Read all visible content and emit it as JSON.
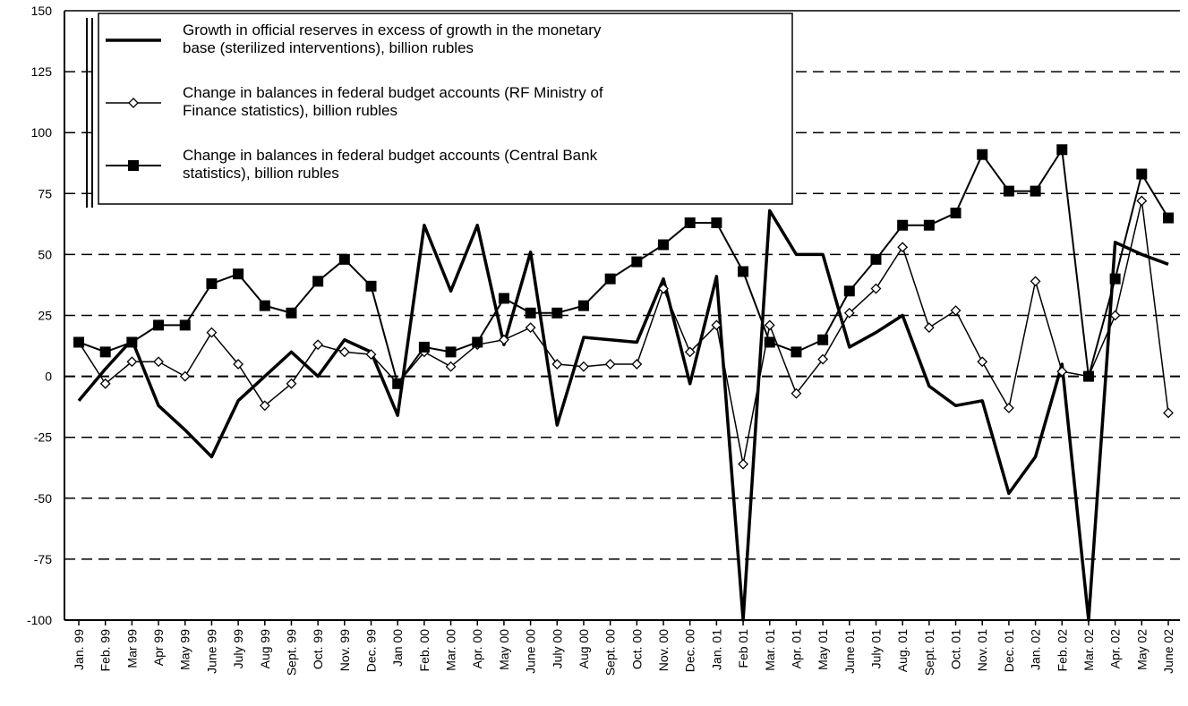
{
  "chart_data": {
    "type": "line",
    "categories": [
      "Jan. 99",
      "Feb. 99",
      "Mar 99",
      "Apr 99",
      "May 99",
      "June 99",
      "July 99",
      "Aug 99",
      "Sept. 99",
      "Oct. 99",
      "Nov. 99",
      "Dec. 99",
      "Jan 00",
      "Feb. 00",
      "Mar. 00",
      "Apr. 00",
      "May 00",
      "June 00",
      "July 00",
      "Aug 00",
      "Sept. 00",
      "Oct. 00",
      "Nov. 00",
      "Dec. 00",
      "Jan. 01",
      "Feb 01",
      "Mar. 01",
      "Apr. 01",
      "May 01",
      "June 01",
      "July 01",
      "Aug. 01",
      "Sept. 01",
      "Oct. 01",
      "Nov. 01",
      "Dec. 01",
      "Jan. 02",
      "Feb. 02",
      "Mar. 02",
      "Apr. 02",
      "May 02",
      "June 02"
    ],
    "series": [
      {
        "name": [
          "Growth in official reserves in excess of growth in the monetary",
          "base (sterilized interventions), billion rubles"
        ],
        "color": "#000000",
        "marker": "none",
        "width": 3.5,
        "values": [
          -10,
          3,
          15,
          -12,
          -22,
          -33,
          -10,
          0,
          10,
          0,
          15,
          10,
          -16,
          62,
          35,
          62,
          13,
          51,
          -20,
          16,
          15,
          14,
          40,
          -3,
          41,
          -100,
          68,
          50,
          50,
          12,
          18,
          25,
          -4,
          -12,
          -10,
          -48,
          -33,
          5,
          -100,
          55,
          50,
          46
        ]
      },
      {
        "name": [
          "Change in balances in federal budget accounts (RF Ministry of",
          "Finance statistics), billion rubles"
        ],
        "color": "#000000",
        "marker": "diamond",
        "width": 1.5,
        "values": [
          14,
          -3,
          6,
          6,
          0,
          18,
          5,
          -12,
          -3,
          13,
          10,
          9,
          -3,
          10,
          4,
          13,
          15,
          20,
          5,
          4,
          5,
          5,
          36,
          10,
          21,
          -36,
          21,
          -7,
          7,
          26,
          36,
          53,
          20,
          27,
          6,
          -13,
          39,
          2,
          0,
          25,
          72,
          -15
        ]
      },
      {
        "name": [
          "Change in balances in federal budget accounts (Central Bank",
          "statistics), billion rubles"
        ],
        "color": "#000000",
        "marker": "square",
        "width": 2,
        "values": [
          14,
          10,
          14,
          21,
          21,
          38,
          42,
          29,
          26,
          39,
          48,
          37,
          -3,
          12,
          10,
          14,
          32,
          26,
          26,
          29,
          40,
          47,
          54,
          63,
          63,
          43,
          14,
          10,
          15,
          35,
          48,
          62,
          62,
          67,
          91,
          76,
          76,
          93,
          0,
          40,
          83,
          65
        ]
      }
    ],
    "ylim": [
      -100,
      150
    ],
    "yticks": [
      -100,
      -75,
      -50,
      -25,
      0,
      25,
      50,
      75,
      100,
      125,
      150
    ],
    "grid": true,
    "legend": "upper left"
  }
}
